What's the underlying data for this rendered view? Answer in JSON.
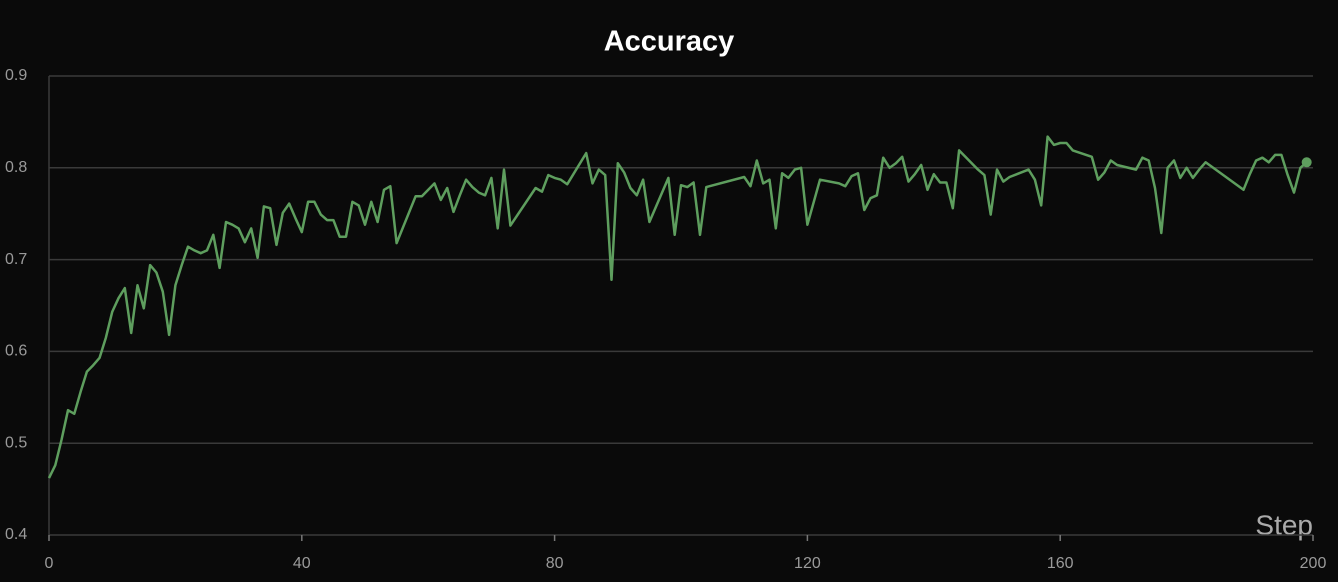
{
  "chart_data": {
    "type": "line",
    "title": "Accuracy",
    "x_label": "Step",
    "x": [
      0,
      1,
      2,
      3,
      4,
      5,
      6,
      7,
      8,
      9,
      10,
      11,
      12,
      13,
      14,
      15,
      16,
      17,
      18,
      19,
      20,
      21,
      22,
      23,
      24,
      25,
      26,
      27,
      28,
      29,
      30,
      31,
      32,
      33,
      34,
      35,
      36,
      37,
      38,
      39,
      40,
      41,
      42,
      43,
      44,
      45,
      46,
      47,
      48,
      49,
      50,
      51,
      52,
      53,
      54,
      55,
      58,
      59,
      61,
      62,
      63,
      64,
      65,
      66,
      67,
      68,
      69,
      70,
      71,
      72,
      73,
      77,
      78,
      79,
      80,
      81,
      82,
      85,
      86,
      87,
      88,
      89,
      90,
      91,
      92,
      93,
      94,
      95,
      98,
      99,
      100,
      101,
      102,
      103,
      104,
      110,
      111,
      112,
      113,
      114,
      115,
      116,
      117,
      118,
      119,
      120,
      122,
      125,
      126,
      127,
      128,
      129,
      130,
      131,
      132,
      133,
      134,
      135,
      136,
      137,
      138,
      139,
      140,
      141,
      142,
      143,
      144,
      147,
      148,
      149,
      150,
      151,
      152,
      155,
      156,
      157,
      158,
      159,
      160,
      161,
      162,
      165,
      166,
      167,
      168,
      169,
      172,
      173,
      174,
      175,
      176,
      177,
      178,
      179,
      180,
      181,
      182,
      183,
      189,
      190,
      191,
      192,
      193,
      194,
      195,
      196,
      197,
      198,
      199
    ],
    "series": [
      {
        "name": "Accuracy",
        "color": "#5e9e5e",
        "values": [
          0.462,
          0.476,
          0.504,
          0.536,
          0.532,
          0.556,
          0.578,
          0.585,
          0.593,
          0.615,
          0.643,
          0.658,
          0.669,
          0.62,
          0.672,
          0.647,
          0.694,
          0.686,
          0.665,
          0.618,
          0.672,
          0.694,
          0.714,
          0.71,
          0.707,
          0.71,
          0.727,
          0.691,
          0.741,
          0.738,
          0.734,
          0.719,
          0.734,
          0.702,
          0.758,
          0.756,
          0.716,
          0.751,
          0.761,
          0.745,
          0.73,
          0.763,
          0.763,
          0.749,
          0.743,
          0.743,
          0.725,
          0.725,
          0.763,
          0.759,
          0.738,
          0.763,
          0.741,
          0.776,
          0.78,
          0.718,
          0.769,
          0.769,
          0.783,
          0.765,
          0.778,
          0.752,
          0.77,
          0.787,
          0.779,
          0.773,
          0.77,
          0.789,
          0.734,
          0.798,
          0.737,
          0.778,
          0.774,
          0.792,
          0.789,
          0.787,
          0.782,
          0.816,
          0.783,
          0.798,
          0.792,
          0.678,
          0.805,
          0.795,
          0.778,
          0.77,
          0.787,
          0.741,
          0.789,
          0.727,
          0.781,
          0.779,
          0.784,
          0.727,
          0.779,
          0.79,
          0.78,
          0.808,
          0.783,
          0.787,
          0.734,
          0.794,
          0.789,
          0.798,
          0.8,
          0.738,
          0.787,
          0.783,
          0.78,
          0.791,
          0.794,
          0.754,
          0.767,
          0.77,
          0.811,
          0.8,
          0.805,
          0.812,
          0.785,
          0.793,
          0.803,
          0.776,
          0.793,
          0.784,
          0.784,
          0.756,
          0.819,
          0.798,
          0.792,
          0.749,
          0.798,
          0.785,
          0.79,
          0.798,
          0.787,
          0.759,
          0.834,
          0.825,
          0.827,
          0.827,
          0.819,
          0.812,
          0.787,
          0.795,
          0.808,
          0.803,
          0.798,
          0.811,
          0.808,
          0.778,
          0.729,
          0.8,
          0.808,
          0.789,
          0.8,
          0.789,
          0.798,
          0.806,
          0.776,
          0.793,
          0.808,
          0.811,
          0.806,
          0.814,
          0.814,
          0.792,
          0.773,
          0.8,
          0.806
        ]
      }
    ],
    "xlim": [
      0,
      200
    ],
    "xticks": [
      0,
      40,
      80,
      120,
      160,
      200
    ],
    "ylim": [
      0.4,
      0.9
    ],
    "yticks": [
      0.4,
      0.5,
      0.6,
      0.7,
      0.8,
      0.9
    ],
    "grid": true
  }
}
